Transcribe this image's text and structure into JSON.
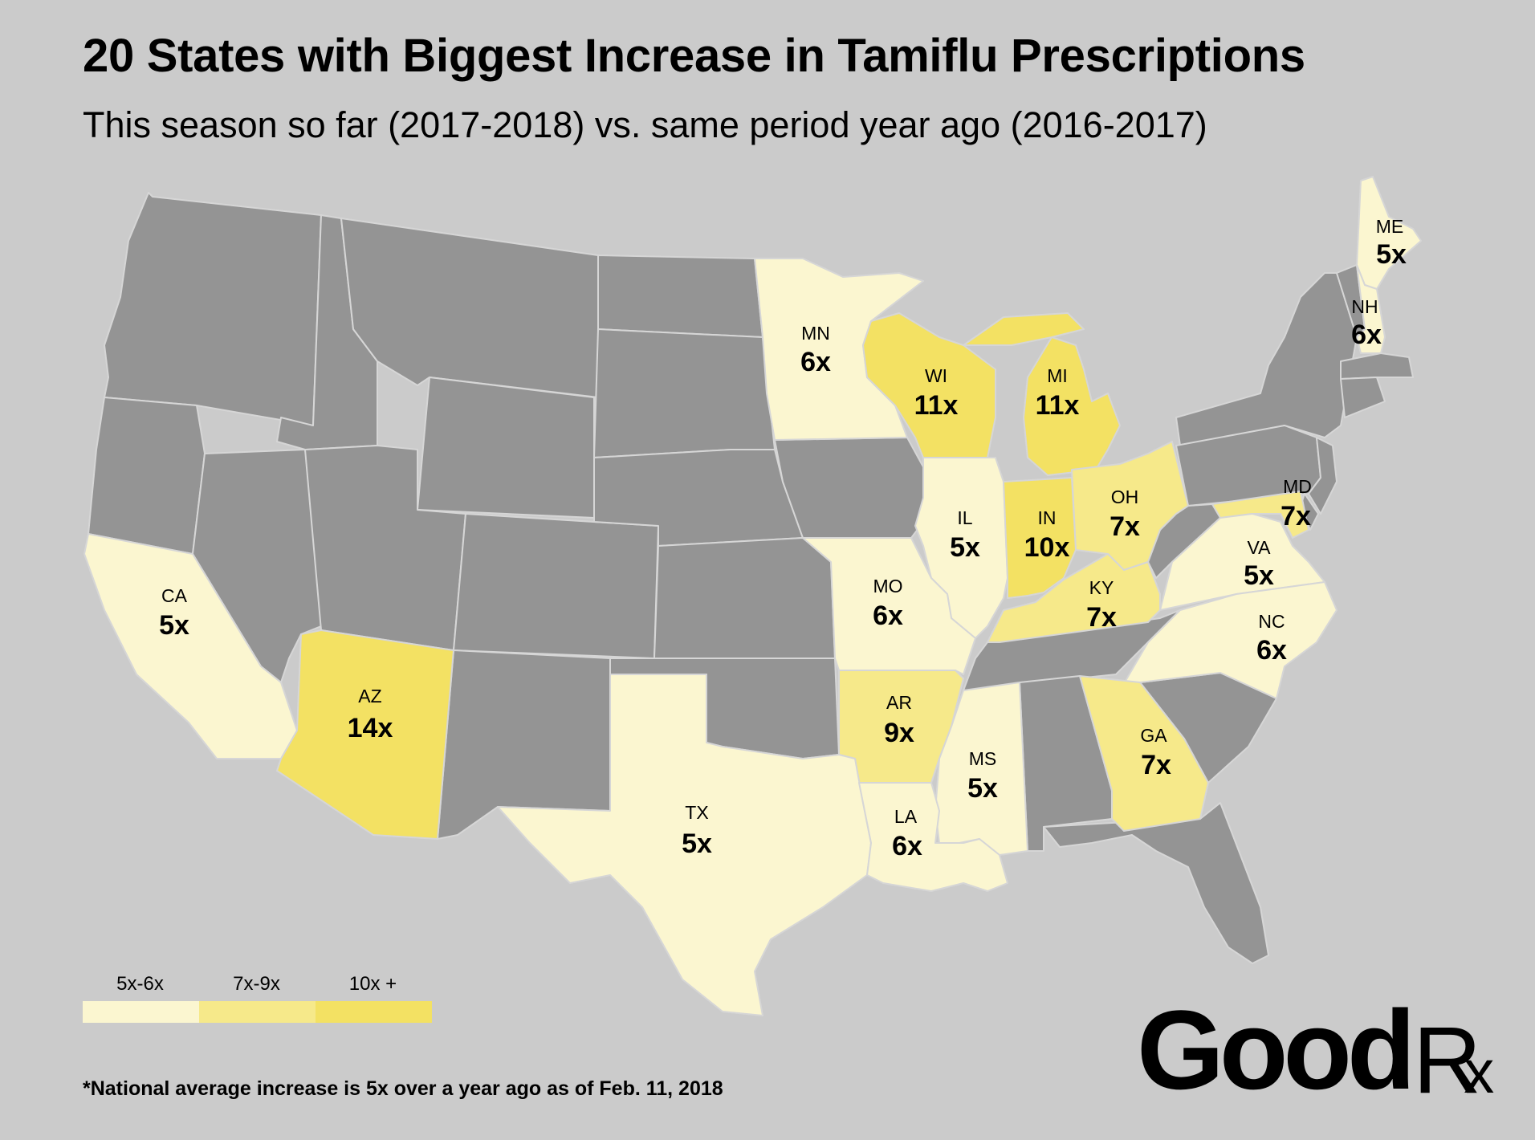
{
  "title": "20 States with Biggest Increase in Tamiflu Prescriptions",
  "subtitle": "This season so far (2017-2018) vs. same period year ago (2016-2017)",
  "colors": {
    "background": "#cbcbcb",
    "no_data": "#949494",
    "tier_5_6": "#fbf6d0",
    "tier_7_9": "#f6e98a",
    "tier_10_plus": "#f3e163",
    "border": "#d6d6d6"
  },
  "legend": [
    {
      "label": "5x-6x",
      "color": "#fbf6d0"
    },
    {
      "label": "7x-9x",
      "color": "#f6e98a"
    },
    {
      "label": "10x +",
      "color": "#f3e163"
    }
  ],
  "states": [
    {
      "abbr": "ME",
      "value": "5x",
      "tier": "5-6"
    },
    {
      "abbr": "NH",
      "value": "6x",
      "tier": "5-6"
    },
    {
      "abbr": "MN",
      "value": "6x",
      "tier": "5-6"
    },
    {
      "abbr": "WI",
      "value": "11x",
      "tier": "10+"
    },
    {
      "abbr": "MI",
      "value": "11x",
      "tier": "10+"
    },
    {
      "abbr": "OH",
      "value": "7x",
      "tier": "7-9"
    },
    {
      "abbr": "MD",
      "value": "7x",
      "tier": "7-9"
    },
    {
      "abbr": "IL",
      "value": "5x",
      "tier": "5-6"
    },
    {
      "abbr": "IN",
      "value": "10x",
      "tier": "10+"
    },
    {
      "abbr": "VA",
      "value": "5x",
      "tier": "5-6"
    },
    {
      "abbr": "KY",
      "value": "7x",
      "tier": "7-9"
    },
    {
      "abbr": "NC",
      "value": "6x",
      "tier": "5-6"
    },
    {
      "abbr": "MO",
      "value": "6x",
      "tier": "5-6"
    },
    {
      "abbr": "CA",
      "value": "5x",
      "tier": "5-6"
    },
    {
      "abbr": "AZ",
      "value": "14x",
      "tier": "10+"
    },
    {
      "abbr": "AR",
      "value": "9x",
      "tier": "7-9"
    },
    {
      "abbr": "GA",
      "value": "7x",
      "tier": "7-9"
    },
    {
      "abbr": "MS",
      "value": "5x",
      "tier": "5-6"
    },
    {
      "abbr": "TX",
      "value": "5x",
      "tier": "5-6"
    },
    {
      "abbr": "LA",
      "value": "6x",
      "tier": "5-6"
    }
  ],
  "footnote": "*National average increase is 5x over a year ago as of Feb. 11, 2018",
  "logo": {
    "main": "Good",
    "r": "R",
    "x": "x"
  }
}
